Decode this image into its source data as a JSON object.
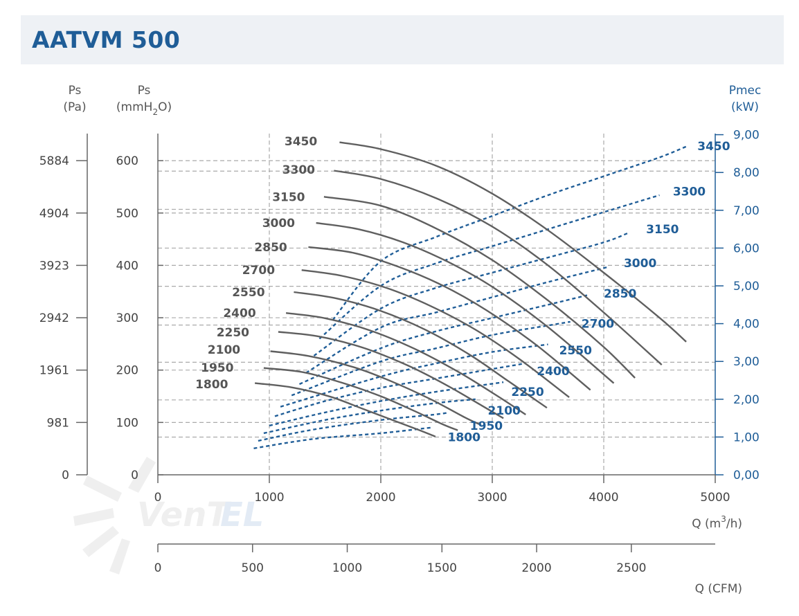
{
  "title": "AATVM 500",
  "chart_data": {
    "type": "line",
    "axes": {
      "left_pa": {
        "label": "Ps",
        "unit": "(Pa)",
        "ticks": [
          "0",
          "981",
          "1961",
          "2942",
          "3923",
          "4904",
          "5884"
        ]
      },
      "left_mm": {
        "label": "Ps",
        "unit_pre": "(mmH",
        "unit_sub": "2",
        "unit_post": "O)",
        "ticks": [
          "0",
          "100",
          "200",
          "300",
          "400",
          "500",
          "600"
        ],
        "ylim": [
          0,
          650
        ]
      },
      "right_kw": {
        "label": "Pmec",
        "unit": "(kW)",
        "ticks": [
          "0,00",
          "1,00",
          "2,00",
          "3,00",
          "4,00",
          "5,00",
          "6,00",
          "7,00",
          "8,00",
          "9,00"
        ],
        "ylim": [
          0,
          9
        ]
      },
      "x_m3h": {
        "label_pre": "Q (m",
        "label_sup": "3",
        "label_post": "/h)",
        "ticks": [
          "0",
          "1000",
          "2000",
          "3000",
          "4000",
          "5000"
        ],
        "xlim": [
          0,
          5000
        ]
      },
      "x_cfm": {
        "label": "Q (CFM)",
        "ticks": [
          "0",
          "500",
          "1000",
          "1500",
          "2000",
          "2500"
        ]
      }
    },
    "grid_x": [
      1000,
      2000,
      3000,
      4000
    ],
    "grid_y_mm": [
      72,
      100,
      143,
      200,
      215,
      286,
      300,
      360,
      400,
      433,
      500,
      507,
      580,
      600
    ],
    "pressure_series": [
      {
        "name": "3450",
        "x": [
          1630,
          2000,
          2500,
          3000,
          3500,
          4000,
          4500,
          4740
        ],
        "y": [
          635,
          622,
          590,
          537,
          467,
          386,
          300,
          254
        ]
      },
      {
        "name": "3300",
        "x": [
          1580,
          2000,
          2500,
          3000,
          3500,
          4000,
          4520
        ],
        "y": [
          581,
          565,
          528,
          474,
          400,
          310,
          210
        ]
      },
      {
        "name": "3150",
        "x": [
          1490,
          2000,
          2500,
          3000,
          3500,
          4000,
          4280
        ],
        "y": [
          531,
          514,
          470,
          410,
          333,
          244,
          185
        ]
      },
      {
        "name": "3000",
        "x": [
          1420,
          1800,
          2200,
          2600,
          3000,
          3500,
          4090
        ],
        "y": [
          481,
          469,
          444,
          407,
          359,
          282,
          175
        ]
      },
      {
        "name": "2850",
        "x": [
          1350,
          1750,
          2150,
          2550,
          2950,
          3400,
          3880
        ],
        "y": [
          435,
          424,
          398,
          362,
          314,
          247,
          162
        ]
      },
      {
        "name": "2700",
        "x": [
          1290,
          1650,
          2050,
          2450,
          2850,
          3250,
          3690
        ],
        "y": [
          391,
          380,
          357,
          322,
          277,
          220,
          148
        ]
      },
      {
        "name": "2550",
        "x": [
          1220,
          1600,
          2000,
          2400,
          2800,
          3150,
          3490
        ],
        "y": [
          349,
          337,
          313,
          277,
          229,
          178,
          128
        ]
      },
      {
        "name": "2400",
        "x": [
          1150,
          1500,
          1900,
          2300,
          2700,
          3050,
          3300
        ],
        "y": [
          309,
          299,
          276,
          241,
          196,
          150,
          115
        ]
      },
      {
        "name": "2250",
        "x": [
          1080,
          1450,
          1850,
          2250,
          2600,
          2900,
          3100
        ],
        "y": [
          273,
          264,
          242,
          208,
          170,
          133,
          108
        ]
      },
      {
        "name": "2100",
        "x": [
          1010,
          1350,
          1750,
          2100,
          2450,
          2750,
          2900
        ],
        "y": [
          236,
          227,
          206,
          178,
          144,
          110,
          95
        ]
      },
      {
        "name": "1950",
        "x": [
          950,
          1300,
          1650,
          2000,
          2300,
          2550,
          2690
        ],
        "y": [
          204,
          196,
          176,
          150,
          122,
          97,
          85
        ]
      },
      {
        "name": "1800",
        "x": [
          870,
          1200,
          1550,
          1850,
          2150,
          2350,
          2490
        ],
        "y": [
          175,
          167,
          149,
          125,
          101,
          85,
          73
        ]
      }
    ],
    "power_series": [
      {
        "name": "3450",
        "x": [
          1570,
          2000,
          2500,
          3000,
          3500,
          4000,
          4500,
          4750
        ],
        "y": [
          4.1,
          5.65,
          6.3,
          6.85,
          7.4,
          7.9,
          8.4,
          8.7
        ]
      },
      {
        "name": "3300",
        "x": [
          1450,
          2000,
          2500,
          3000,
          3500,
          4000,
          4500
        ],
        "y": [
          3.6,
          5.0,
          5.6,
          6.05,
          6.5,
          6.95,
          7.4
        ]
      },
      {
        "name": "3150",
        "x": [
          1400,
          2000,
          2500,
          3000,
          3500,
          4000,
          4220
        ],
        "y": [
          3.15,
          4.4,
          4.95,
          5.35,
          5.75,
          6.15,
          6.4
        ]
      },
      {
        "name": "3000",
        "x": [
          1330,
          2000,
          2500,
          3000,
          3500,
          4040
        ],
        "y": [
          2.7,
          3.9,
          4.3,
          4.7,
          5.1,
          5.5
        ]
      },
      {
        "name": "2850",
        "x": [
          1270,
          2000,
          2500,
          3000,
          3500,
          3850
        ],
        "y": [
          2.4,
          3.35,
          3.8,
          4.15,
          4.5,
          4.75
        ]
      },
      {
        "name": "2700",
        "x": [
          1200,
          2000,
          2500,
          3000,
          3500,
          3700
        ],
        "y": [
          2.1,
          3.0,
          3.35,
          3.7,
          3.95,
          4.05
        ]
      },
      {
        "name": "2550",
        "x": [
          1100,
          2000,
          2500,
          3000,
          3500
        ],
        "y": [
          1.8,
          2.6,
          2.95,
          3.25,
          3.45
        ]
      },
      {
        "name": "2400",
        "x": [
          1050,
          1500,
          2000,
          2500,
          3000,
          3300
        ],
        "y": [
          1.55,
          1.95,
          2.3,
          2.55,
          2.8,
          2.95
        ]
      },
      {
        "name": "2250",
        "x": [
          1000,
          1500,
          2000,
          2500,
          3100
        ],
        "y": [
          1.3,
          1.65,
          1.95,
          2.2,
          2.45
        ]
      },
      {
        "name": "2100",
        "x": [
          950,
          1500,
          2000,
          2500,
          2850
        ],
        "y": [
          1.1,
          1.45,
          1.7,
          1.9,
          2.0
        ]
      },
      {
        "name": "1950",
        "x": [
          900,
          1400,
          2000,
          2500,
          2600
        ],
        "y": [
          0.9,
          1.2,
          1.45,
          1.6,
          1.65
        ]
      },
      {
        "name": "1800",
        "x": [
          860,
          1400,
          2000,
          2450
        ],
        "y": [
          0.7,
          0.95,
          1.1,
          1.25
        ]
      }
    ],
    "pressure_label_pos": {
      "3450": [
        1430,
        637
      ],
      "3300": [
        1410,
        583
      ],
      "3150": [
        1320,
        531
      ],
      "3000": [
        1230,
        481
      ],
      "2850": [
        1160,
        435
      ],
      "2700": [
        1050,
        391
      ],
      "2550": [
        960,
        349
      ],
      "2400": [
        880,
        309
      ],
      "2250": [
        820,
        272
      ],
      "2100": [
        740,
        239
      ],
      "1950": [
        680,
        205
      ],
      "1800": [
        630,
        173
      ]
    },
    "power_label_pos": {
      "3450": [
        4840,
        8.7
      ],
      "3300": [
        4620,
        7.5
      ],
      "3150": [
        4380,
        6.5
      ],
      "3000": [
        4180,
        5.6
      ],
      "2850": [
        4000,
        4.8
      ],
      "2700": [
        3800,
        4.0
      ],
      "2550": [
        3600,
        3.3
      ],
      "2400": [
        3400,
        2.75
      ],
      "2250": [
        3170,
        2.2
      ],
      "2100": [
        2960,
        1.7
      ],
      "1950": [
        2800,
        1.3
      ],
      "1800": [
        2600,
        1.0
      ]
    }
  }
}
